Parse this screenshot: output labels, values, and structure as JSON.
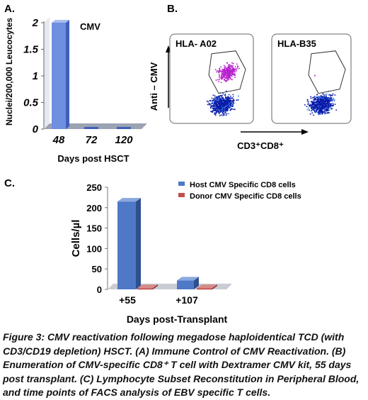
{
  "panels": {
    "a_label": "A.",
    "b_label": "B.",
    "c_label": "C."
  },
  "chart_data": [
    {
      "type": "bar",
      "panel": "A",
      "title": "",
      "annotation": "CMV",
      "categories": [
        "48",
        "72",
        "120"
      ],
      "values": [
        2,
        0,
        0
      ],
      "ylabel": "Nuclei/200,000 Leucocytes",
      "xlabel": "Days post HSCT",
      "ylim": [
        0,
        2
      ],
      "yticks": [
        "0",
        "0.5",
        "1",
        "1.5",
        "2"
      ],
      "style": "3d",
      "colors": {
        "bar": "#6f8fe0",
        "bar_dark": "#3f5fb8",
        "floor": "#9aa3b3"
      }
    },
    {
      "type": "scatter",
      "panel": "B",
      "plots": [
        {
          "label": "HLA- A02",
          "has_positive_population": true
        },
        {
          "label": "HLA-B35",
          "has_positive_population": false
        }
      ],
      "ylabel": "Anti – CMV",
      "xlabel": "CD3⁺CD8⁺",
      "colors": {
        "negative": "#0a1aa8",
        "positive": "#b020c8"
      }
    },
    {
      "type": "bar",
      "panel": "C",
      "title": "",
      "categories": [
        "+55",
        "+107"
      ],
      "series": [
        {
          "name": "Host CMV Specific CD8 cells",
          "values": [
            215,
            22
          ],
          "color": "#4f79c6"
        },
        {
          "name": "Donor CMV Specific CD8 cells",
          "values": [
            3,
            3
          ],
          "color": "#c0504d"
        }
      ],
      "ylabel": "Cells/µl",
      "xlabel": "Days post-Transplant",
      "ylim": [
        0,
        250
      ],
      "yticks": [
        "0",
        "50",
        "100",
        "150",
        "200",
        "250"
      ],
      "legend_position": "top-right",
      "style": "3d"
    }
  ],
  "caption": "Figure 3: CMV reactivation following megadose haploidentical TCD (with CD3/CD19 depletion) HSCT. (A) Immune Control of CMV Reactivation. (B) Enumeration of CMV-specific CD8⁺ T cell with Dextramer CMV kit, 55 days post transplant. (C) Lymphocyte Subset Reconstitution in Peripheral Blood, and time points of FACS analysis of EBV specific T cells."
}
